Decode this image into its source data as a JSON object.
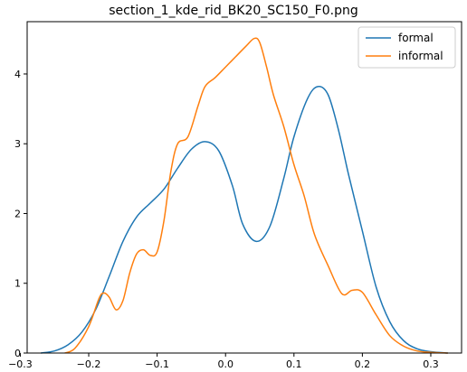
{
  "chart_data": {
    "type": "line",
    "title": "section_1_kde_rid_BK20_SC150_F0.png",
    "xlabel": "",
    "ylabel": "",
    "xlim": [
      -0.29,
      0.345
    ],
    "ylim": [
      0,
      4.75
    ],
    "xticks": [
      -0.3,
      -0.2,
      -0.1,
      0.0,
      0.1,
      0.2,
      0.3
    ],
    "xtick_labels": [
      "−0.3",
      "−0.2",
      "−0.1",
      "0.0",
      "0.1",
      "0.2",
      "0.3"
    ],
    "yticks": [
      0,
      1,
      2,
      3,
      4
    ],
    "ytick_labels": [
      "0",
      "1",
      "2",
      "3",
      "4"
    ],
    "grid": false,
    "legend_position": "top-right",
    "series": [
      {
        "name": "formal",
        "color": "#1f77b4",
        "points": [
          [
            -0.27,
            0.0
          ],
          [
            -0.25,
            0.03
          ],
          [
            -0.23,
            0.12
          ],
          [
            -0.21,
            0.3
          ],
          [
            -0.19,
            0.62
          ],
          [
            -0.17,
            1.1
          ],
          [
            -0.15,
            1.6
          ],
          [
            -0.13,
            1.95
          ],
          [
            -0.11,
            2.15
          ],
          [
            -0.09,
            2.35
          ],
          [
            -0.07,
            2.65
          ],
          [
            -0.05,
            2.92
          ],
          [
            -0.03,
            3.03
          ],
          [
            -0.01,
            2.9
          ],
          [
            0.01,
            2.4
          ],
          [
            0.025,
            1.85
          ],
          [
            0.045,
            1.6
          ],
          [
            0.065,
            1.82
          ],
          [
            0.085,
            2.5
          ],
          [
            0.1,
            3.1
          ],
          [
            0.12,
            3.65
          ],
          [
            0.135,
            3.82
          ],
          [
            0.15,
            3.7
          ],
          [
            0.165,
            3.2
          ],
          [
            0.18,
            2.55
          ],
          [
            0.2,
            1.75
          ],
          [
            0.22,
            0.95
          ],
          [
            0.24,
            0.45
          ],
          [
            0.26,
            0.18
          ],
          [
            0.28,
            0.06
          ],
          [
            0.3,
            0.02
          ],
          [
            0.325,
            0.0
          ]
        ]
      },
      {
        "name": "informal",
        "color": "#ff7f0e",
        "points": [
          [
            -0.235,
            0.0
          ],
          [
            -0.22,
            0.07
          ],
          [
            -0.2,
            0.38
          ],
          [
            -0.185,
            0.78
          ],
          [
            -0.178,
            0.86
          ],
          [
            -0.17,
            0.8
          ],
          [
            -0.16,
            0.62
          ],
          [
            -0.15,
            0.75
          ],
          [
            -0.14,
            1.15
          ],
          [
            -0.13,
            1.42
          ],
          [
            -0.12,
            1.48
          ],
          [
            -0.11,
            1.4
          ],
          [
            -0.1,
            1.45
          ],
          [
            -0.09,
            1.9
          ],
          [
            -0.08,
            2.6
          ],
          [
            -0.07,
            3.0
          ],
          [
            -0.055,
            3.1
          ],
          [
            -0.04,
            3.55
          ],
          [
            -0.03,
            3.82
          ],
          [
            -0.015,
            3.95
          ],
          [
            0.0,
            4.1
          ],
          [
            0.015,
            4.25
          ],
          [
            0.03,
            4.4
          ],
          [
            0.042,
            4.51
          ],
          [
            0.05,
            4.45
          ],
          [
            0.06,
            4.1
          ],
          [
            0.07,
            3.7
          ],
          [
            0.085,
            3.25
          ],
          [
            0.1,
            2.7
          ],
          [
            0.115,
            2.25
          ],
          [
            0.13,
            1.7
          ],
          [
            0.15,
            1.25
          ],
          [
            0.17,
            0.85
          ],
          [
            0.185,
            0.9
          ],
          [
            0.2,
            0.87
          ],
          [
            0.22,
            0.55
          ],
          [
            0.24,
            0.25
          ],
          [
            0.26,
            0.1
          ],
          [
            0.28,
            0.03
          ],
          [
            0.3,
            0.01
          ],
          [
            0.325,
            0.0
          ]
        ]
      }
    ]
  }
}
